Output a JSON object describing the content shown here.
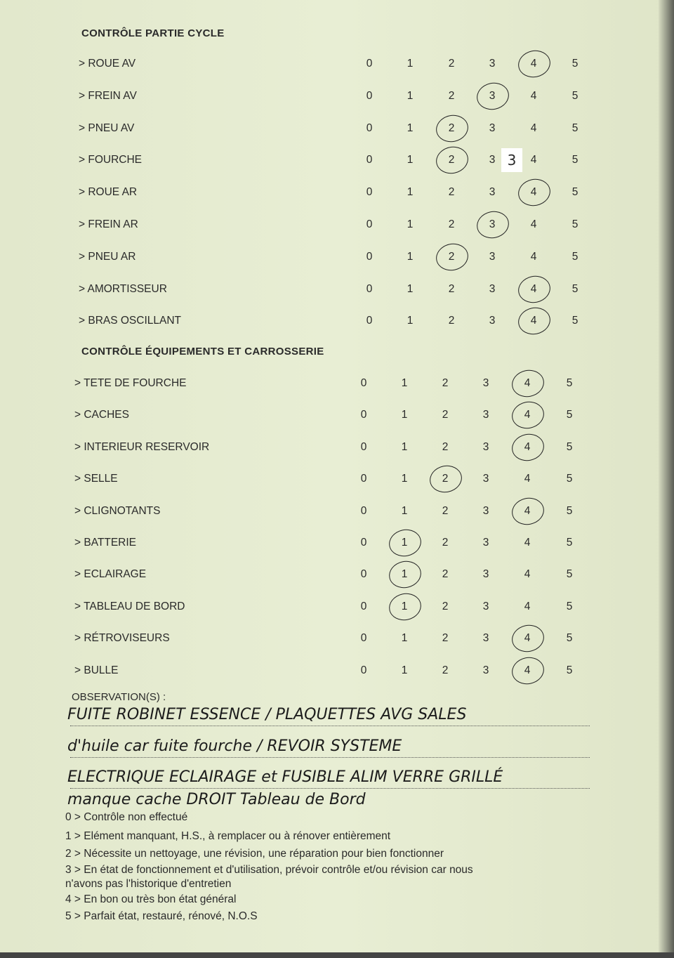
{
  "sections": [
    {
      "title": "CONTRÔLE PARTIE CYCLE",
      "items": [
        {
          "label": "> ROUE AV",
          "rating": 4
        },
        {
          "label": "> FREIN AV",
          "rating": 3
        },
        {
          "label": "> PNEU AV",
          "rating": 2
        },
        {
          "label": "> FOURCHE",
          "rating": 2,
          "sticker": "3"
        },
        {
          "label": "> ROUE AR",
          "rating": 4
        },
        {
          "label": "> FREIN AR",
          "rating": 3
        },
        {
          "label": "> PNEU AR",
          "rating": 2
        },
        {
          "label": "> AMORTISSEUR",
          "rating": 4
        },
        {
          "label": "> BRAS OSCILLANT",
          "rating": 4
        }
      ]
    },
    {
      "title": "CONTRÔLE ÉQUIPEMENTS ET CARROSSERIE",
      "items": [
        {
          "label": "> TETE DE FOURCHE",
          "rating": 4
        },
        {
          "label": "> CACHES",
          "rating": 4
        },
        {
          "label": "> INTERIEUR RESERVOIR",
          "rating": 4
        },
        {
          "label": "> SELLE",
          "rating": 2
        },
        {
          "label": "> CLIGNOTANTS",
          "rating": 4
        },
        {
          "label": "> BATTERIE",
          "rating": 1
        },
        {
          "label": "> ECLAIRAGE",
          "rating": 1
        },
        {
          "label": "> TABLEAU DE BORD",
          "rating": 1
        },
        {
          "label": "> RÉTROVISEURS",
          "rating": 4
        },
        {
          "label": "> BULLE",
          "rating": 4
        }
      ]
    }
  ],
  "scale": [
    "0",
    "1",
    "2",
    "3",
    "4",
    "5"
  ],
  "observations": {
    "title": "OBSERVATION(S) :",
    "lines": [
      "FUITE ROBINET ESSENCE / PLAQUETTES AVG SALES",
      "d'huile car fuite fourche / REVOIR SYSTEME",
      "ELECTRIQUE ECLAIRAGE et FUSIBLE ALIM VERRE GRILLÉ",
      "manque cache DROIT Tableau de Bord"
    ]
  },
  "legend": [
    "0 > Contrôle non effectué",
    "1 > Elément manquant, H.S., à remplacer ou à rénover entièrement",
    "2 > Nécessite un nettoyage, une révision, une réparation pour bien fonctionner",
    "3 > En état de fonctionnement et d'utilisation, prévoir contrôle et/ou révision car nous",
    "n'avons pas l'historique d'entretien",
    "4 > En bon ou très bon état général",
    "5 > Parfait état, restauré, rénové, N.O.S"
  ]
}
